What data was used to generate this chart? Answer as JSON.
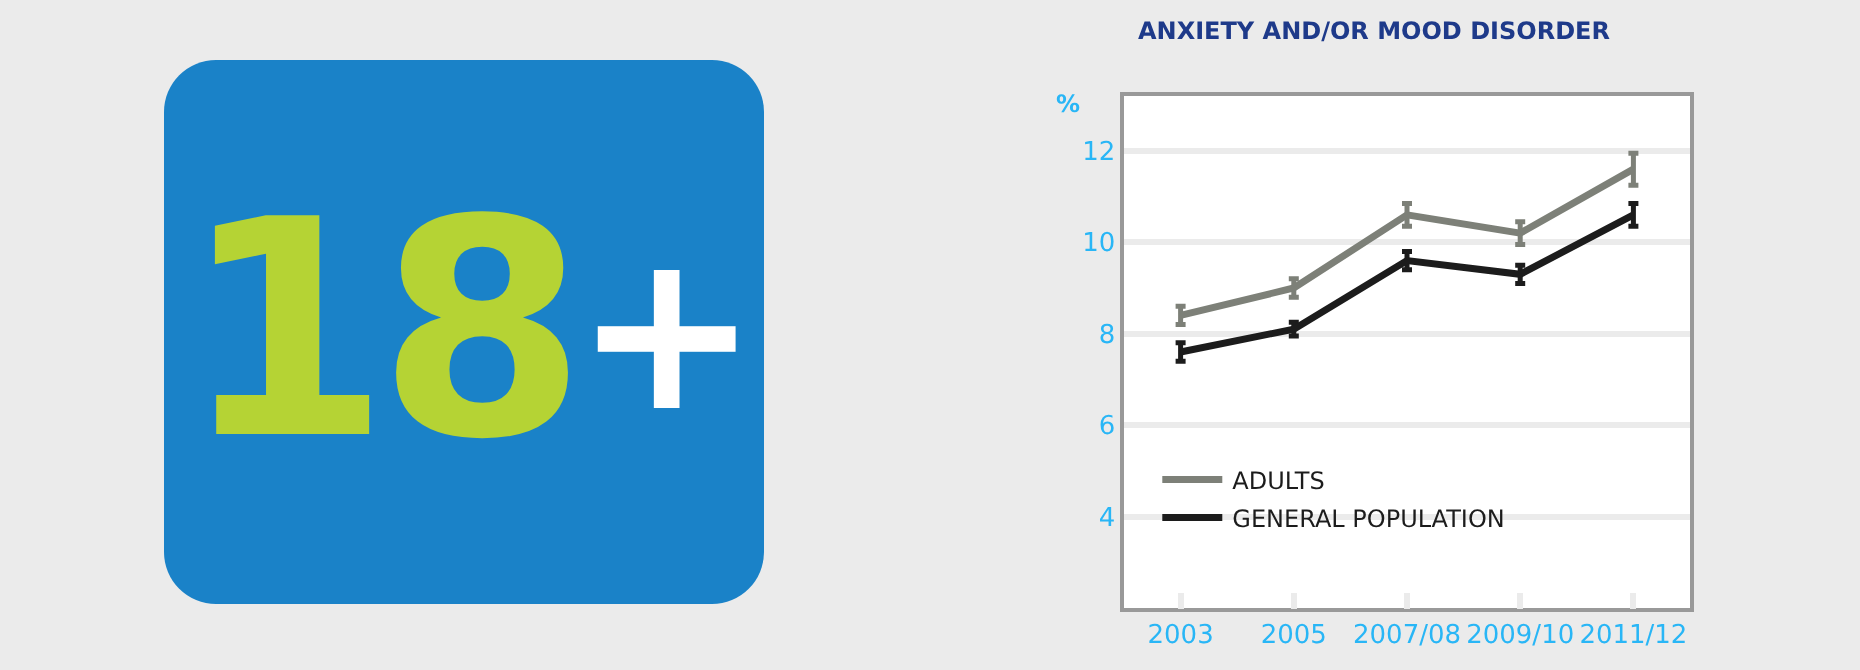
{
  "chart_data": {
    "type": "line",
    "title": "ANXIETY AND/OR MOOD DISORDER",
    "ylabel": "%",
    "categories": [
      "2003",
      "2005",
      "2007/08",
      "2009/10",
      "2011/12"
    ],
    "series": [
      {
        "name": "ADULTS",
        "color": "#7d8078",
        "values": [
          8.4,
          9.0,
          10.6,
          10.2,
          11.6
        ],
        "errors": [
          0.2,
          0.2,
          0.25,
          0.25,
          0.35
        ]
      },
      {
        "name": "GENERAL POPULATION",
        "color": "#1c1c1c",
        "values": [
          7.6,
          8.1,
          9.6,
          9.3,
          10.6
        ],
        "errors": [
          0.2,
          0.15,
          0.2,
          0.2,
          0.25
        ]
      }
    ],
    "ylim": [
      2,
      13.2
    ],
    "yticks": [
      4,
      6,
      8,
      10,
      12
    ],
    "grid": "y",
    "legend": "bottom left",
    "marker": "none",
    "line_style": "solid",
    "annotations": [
      "18+"
    ]
  }
}
